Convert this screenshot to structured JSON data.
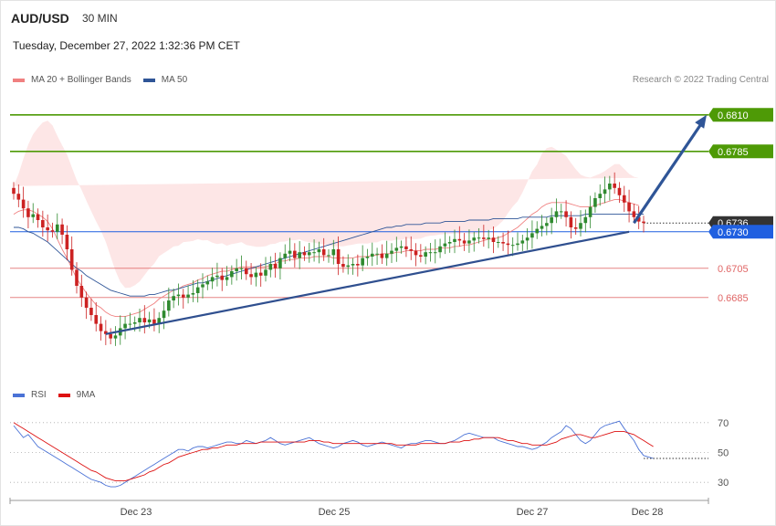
{
  "header": {
    "symbol": "AUD/USD",
    "timeframe": "30 MIN",
    "datetime": "Tuesday, December 27, 2022 1:32:36 PM CET",
    "copyright": "Research © 2022 Trading Central"
  },
  "colors": {
    "resistance": "#4e9a06",
    "support": "#e06666",
    "current": "#1f5fe0",
    "ma20": "#f08080",
    "ma50": "#2f5597",
    "band": "#fde2e2",
    "trend": "#2f4f8f",
    "candle_up": "#2f8a2f",
    "candle_down": "#cc2222",
    "rsi": "#4a72d6",
    "rsi_ma": "#dd1111",
    "last_price_tag": "#333333"
  },
  "legend": {
    "main": [
      {
        "label": "MA 20 + Bollinger Bands",
        "color": "#f08080"
      },
      {
        "label": "MA 50",
        "color": "#2f5597"
      }
    ],
    "rsi": [
      {
        "label": "RSI",
        "color": "#4a72d6"
      },
      {
        "label": "9MA",
        "color": "#dd1111"
      }
    ]
  },
  "chart_data": {
    "type": "candlestick",
    "y_range": [
      0.6628,
      0.6828
    ],
    "x_labels": [
      "Dec 23",
      "Dec 25",
      "Dec 27",
      "Dec 28"
    ],
    "levels": [
      {
        "value": 0.681,
        "label": "0.6810",
        "kind": "resistance"
      },
      {
        "value": 0.6785,
        "label": "0.6785",
        "kind": "resistance"
      },
      {
        "value": 0.6736,
        "label": "0.6736",
        "kind": "last"
      },
      {
        "value": 0.673,
        "label": "0.6730",
        "kind": "current"
      },
      {
        "value": 0.6705,
        "label": "0.6705",
        "kind": "support"
      },
      {
        "value": 0.6685,
        "label": "0.6685",
        "kind": "support"
      }
    ],
    "close": [
      0.6756,
      0.6752,
      0.6746,
      0.674,
      0.6742,
      0.6738,
      0.6733,
      0.6731,
      0.673,
      0.6735,
      0.6728,
      0.6718,
      0.6704,
      0.6693,
      0.6685,
      0.6678,
      0.6673,
      0.6667,
      0.6662,
      0.666,
      0.6657,
      0.6659,
      0.6664,
      0.6667,
      0.6667,
      0.6668,
      0.6671,
      0.6668,
      0.667,
      0.6667,
      0.6671,
      0.6676,
      0.6683,
      0.6686,
      0.6687,
      0.6685,
      0.6687,
      0.6688,
      0.6692,
      0.6694,
      0.6696,
      0.6699,
      0.67,
      0.6697,
      0.6699,
      0.6703,
      0.6705,
      0.6705,
      0.6701,
      0.6699,
      0.6702,
      0.67,
      0.6704,
      0.6708,
      0.6705,
      0.6712,
      0.6715,
      0.6717,
      0.6712,
      0.6716,
      0.6714,
      0.6716,
      0.6716,
      0.6718,
      0.6714,
      0.6714,
      0.6718,
      0.6708,
      0.6706,
      0.6707,
      0.6708,
      0.6707,
      0.6712,
      0.6713,
      0.6715,
      0.6715,
      0.6712,
      0.6715,
      0.6717,
      0.6719,
      0.672,
      0.6718,
      0.6717,
      0.6714,
      0.6713,
      0.6716,
      0.6716,
      0.6716,
      0.672,
      0.6722,
      0.6723,
      0.6725,
      0.6724,
      0.6722,
      0.6724,
      0.6726,
      0.6726,
      0.6725,
      0.6726,
      0.6723,
      0.6723,
      0.6722,
      0.6721,
      0.6721,
      0.6722,
      0.6724,
      0.6726,
      0.6729,
      0.6732,
      0.6734,
      0.6736,
      0.674,
      0.6744,
      0.6744,
      0.674,
      0.6733,
      0.6732,
      0.6736,
      0.674,
      0.6747,
      0.6753,
      0.6756,
      0.6759,
      0.6763,
      0.676,
      0.6755,
      0.675,
      0.6744,
      0.674,
      0.6737,
      0.6736
    ],
    "ma20": [
      0.6742,
      0.6744,
      0.6745,
      0.6745,
      0.6744,
      0.6742,
      0.674,
      0.6737,
      0.6732,
      0.6725,
      0.6718,
      0.6712,
      0.6705,
      0.6698,
      0.6693,
      0.6688,
      0.6684,
      0.668,
      0.6678,
      0.6675,
      0.6673,
      0.6672,
      0.6672,
      0.6672,
      0.6673,
      0.6674,
      0.6675,
      0.6677,
      0.6679,
      0.6681,
      0.6684,
      0.6686,
      0.6688,
      0.669,
      0.6691,
      0.6693,
      0.6694,
      0.6695,
      0.6697,
      0.6698,
      0.67,
      0.6701,
      0.6702,
      0.6703,
      0.6703,
      0.6704,
      0.6705,
      0.6706,
      0.6706,
      0.6706,
      0.6706,
      0.6706,
      0.6706,
      0.6707,
      0.6708,
      0.671,
      0.671,
      0.6711,
      0.6711,
      0.6712,
      0.6712,
      0.6712,
      0.6713,
      0.6713,
      0.6713,
      0.6713,
      0.6712,
      0.6712,
      0.6712,
      0.6712,
      0.6712,
      0.6713,
      0.6713,
      0.6713,
      0.6714,
      0.6714,
      0.6715,
      0.6715,
      0.6715,
      0.6716,
      0.6716,
      0.6717,
      0.6717,
      0.6717,
      0.6717,
      0.6718,
      0.6718,
      0.6718,
      0.6719,
      0.6719,
      0.6719,
      0.672,
      0.672,
      0.6721,
      0.6721,
      0.6722,
      0.6723,
      0.6724,
      0.6725,
      0.6725,
      0.6726,
      0.6727,
      0.6729,
      0.6731,
      0.6733,
      0.6736,
      0.6739,
      0.6742,
      0.6744,
      0.6747,
      0.6749,
      0.675,
      0.675,
      0.675,
      0.675,
      0.6749,
      0.6748,
      0.6747,
      0.6747,
      0.6747,
      0.6748,
      0.6749,
      0.675,
      0.6751,
      0.6752,
      0.6752,
      0.6751,
      0.675,
      0.6749,
      0.6748
    ],
    "ma50": [
      0.6733,
      0.6733,
      0.6732,
      0.673,
      0.6729,
      0.6727,
      0.6725,
      0.6723,
      0.672,
      0.6717,
      0.6714,
      0.6711,
      0.6708,
      0.6705,
      0.6703,
      0.67,
      0.6698,
      0.6696,
      0.6694,
      0.6692,
      0.669,
      0.6689,
      0.6688,
      0.6687,
      0.6686,
      0.6686,
      0.6686,
      0.6686,
      0.6687,
      0.6687,
      0.6688,
      0.6689,
      0.669,
      0.669,
      0.6691,
      0.6692,
      0.6693,
      0.6694,
      0.6695,
      0.6695,
      0.6696,
      0.6697,
      0.6698,
      0.6699,
      0.67,
      0.6701,
      0.6702,
      0.6703,
      0.6704,
      0.6705,
      0.6706,
      0.6707,
      0.6708,
      0.6709,
      0.671,
      0.6711,
      0.6712,
      0.6713,
      0.6714,
      0.6715,
      0.6716,
      0.6717,
      0.6718,
      0.6719,
      0.672,
      0.6721,
      0.6722,
      0.6723,
      0.6724,
      0.6725,
      0.6726,
      0.6727,
      0.6728,
      0.6729,
      0.673,
      0.6731,
      0.6732,
      0.6733,
      0.6733,
      0.6734,
      0.6734,
      0.6735,
      0.6735,
      0.6735,
      0.6735,
      0.6736,
      0.6736,
      0.6736,
      0.6736,
      0.6737,
      0.6737,
      0.6737,
      0.6737,
      0.6737,
      0.6738,
      0.6738,
      0.6738,
      0.6738,
      0.6738,
      0.6739,
      0.6739,
      0.6739,
      0.6739,
      0.6739,
      0.6739,
      0.674,
      0.674,
      0.674,
      0.674,
      0.674,
      0.674,
      0.6741,
      0.6741,
      0.6741,
      0.6741,
      0.6741,
      0.6741,
      0.6741,
      0.6742,
      0.6742,
      0.6742,
      0.6742,
      0.6742,
      0.6742,
      0.6742,
      0.6742,
      0.6742,
      0.6742,
      0.6742,
      0.6742,
      0.6742
    ],
    "trendline": {
      "from": {
        "index": 19,
        "value": 0.666
      },
      "to": {
        "index": 127,
        "value": 0.673
      }
    },
    "projection": {
      "from": {
        "index": 128,
        "value": 0.6736
      },
      "to": {
        "index": 143,
        "value": 0.681
      }
    },
    "rsi": {
      "axis_labels": [
        "70",
        "50",
        "30"
      ],
      "levels": [
        70,
        50,
        30
      ],
      "y_range": [
        24,
        76
      ],
      "rsi": [
        68,
        64,
        60,
        62,
        58,
        54,
        52,
        50,
        48,
        46,
        44,
        42,
        40,
        38,
        36,
        34,
        32,
        31,
        30,
        28,
        27,
        27,
        28,
        30,
        32,
        34,
        36,
        38,
        40,
        42,
        44,
        46,
        48,
        50,
        52,
        52,
        51,
        53,
        54,
        54,
        53,
        54,
        55,
        56,
        57,
        57,
        56,
        56,
        58,
        57,
        56,
        57,
        58,
        60,
        58,
        56,
        55,
        56,
        57,
        58,
        59,
        60,
        58,
        56,
        55,
        54,
        53,
        54,
        56,
        57,
        58,
        57,
        55,
        54,
        55,
        56,
        57,
        56,
        55,
        54,
        53,
        55,
        56,
        56,
        57,
        58,
        58,
        57,
        56,
        56,
        57,
        58,
        60,
        62,
        63,
        62,
        61,
        60,
        60,
        60,
        58,
        57,
        56,
        55,
        54,
        54,
        53,
        52,
        53,
        55,
        57,
        60,
        62,
        64,
        68,
        66,
        62,
        58,
        56,
        58,
        62,
        66,
        68,
        69,
        70,
        71,
        66,
        62,
        58,
        52,
        48,
        47,
        46
      ],
      "ma": [
        70,
        68,
        66,
        64,
        62,
        60,
        58,
        56,
        54,
        52,
        50,
        48,
        46,
        44,
        42,
        40,
        38,
        37,
        35,
        33,
        32,
        31,
        31,
        31,
        32,
        33,
        34,
        35,
        37,
        38,
        40,
        42,
        43,
        45,
        47,
        48,
        49,
        50,
        51,
        52,
        52,
        53,
        53,
        54,
        55,
        55,
        55,
        56,
        56,
        56,
        56,
        57,
        57,
        57,
        57,
        57,
        57,
        57,
        57,
        57,
        57,
        58,
        58,
        58,
        57,
        57,
        56,
        56,
        56,
        56,
        56,
        56,
        56,
        56,
        56,
        56,
        56,
        56,
        56,
        55,
        55,
        55,
        55,
        55,
        56,
        56,
        56,
        56,
        56,
        56,
        57,
        57,
        57,
        58,
        58,
        59,
        59,
        60,
        60,
        60,
        60,
        59,
        58,
        58,
        57,
        56,
        56,
        55,
        55,
        55,
        55,
        56,
        57,
        59,
        60,
        61,
        62,
        62,
        61,
        60,
        60,
        61,
        62,
        63,
        64,
        64,
        64,
        63,
        62,
        60,
        58,
        56,
        54
      ]
    }
  }
}
